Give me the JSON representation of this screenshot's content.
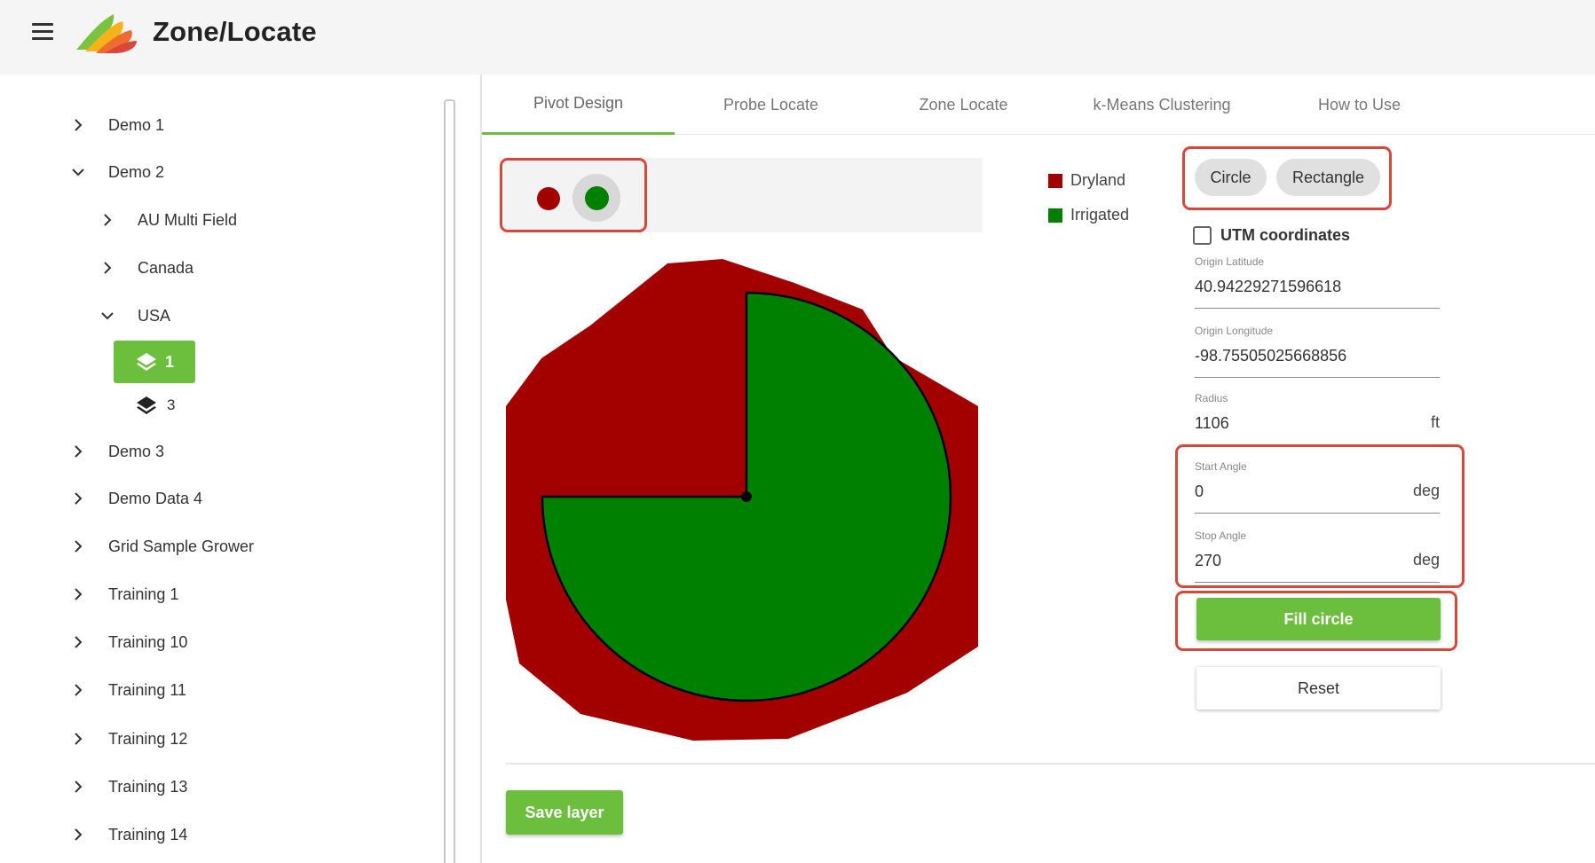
{
  "header": {
    "title": "Zone/Locate",
    "menu_icon": "hamburger-menu-icon",
    "logo_icon": "zone-locate-logo-icon"
  },
  "sidebar": {
    "items": [
      {
        "label": "Demo 1",
        "expanded": false
      },
      {
        "label": "Demo 2",
        "expanded": true
      },
      {
        "label": "AU Multi Field",
        "expanded": false
      },
      {
        "label": "Canada",
        "expanded": false
      },
      {
        "label": "USA",
        "expanded": true
      },
      {
        "label": "Demo 3",
        "expanded": false
      },
      {
        "label": "Demo Data 4",
        "expanded": false
      },
      {
        "label": "Grid Sample Grower",
        "expanded": false
      },
      {
        "label": "Training 1",
        "expanded": false
      },
      {
        "label": "Training 10",
        "expanded": false
      },
      {
        "label": "Training 11",
        "expanded": false
      },
      {
        "label": "Training 12",
        "expanded": false
      },
      {
        "label": "Training 13",
        "expanded": false
      },
      {
        "label": "Training 14",
        "expanded": false
      }
    ],
    "layers": [
      {
        "label": "1",
        "selected": true,
        "icon": "layers-icon"
      },
      {
        "label": "3",
        "selected": false,
        "icon": "layers-icon"
      }
    ]
  },
  "tabs": [
    {
      "label": "Pivot Design",
      "active": true
    },
    {
      "label": "Probe Locate",
      "active": false
    },
    {
      "label": "Zone Locate",
      "active": false
    },
    {
      "label": "k-Means Clustering",
      "active": false
    },
    {
      "label": "How to Use",
      "active": false
    }
  ],
  "legend": [
    {
      "label": "Dryland",
      "color": "#a30000"
    },
    {
      "label": "Irrigated",
      "color": "#008000"
    }
  ],
  "shape_buttons": {
    "circle": "Circle",
    "rectangle": "Rectangle"
  },
  "utm": {
    "label": "UTM coordinates",
    "checked": false
  },
  "fields": {
    "origin_latitude": {
      "label": "Origin Latitude",
      "value": "40.94229271596618",
      "unit": ""
    },
    "origin_longitude": {
      "label": "Origin Longitude",
      "value": "-98.75505025668856",
      "unit": ""
    },
    "radius": {
      "label": "Radius",
      "value": "1106",
      "unit": "ft"
    },
    "start_angle": {
      "label": "Start Angle",
      "value": "0",
      "unit": "deg"
    },
    "stop_angle": {
      "label": "Stop Angle",
      "value": "270",
      "unit": "deg"
    }
  },
  "buttons": {
    "fill_circle": "Fill circle",
    "reset": "Reset",
    "save_layer": "Save layer"
  },
  "colors": {
    "accent": "#6cbf3d",
    "dryland": "#a30000",
    "irrigated": "#008000",
    "highlight": "#d9473a"
  }
}
